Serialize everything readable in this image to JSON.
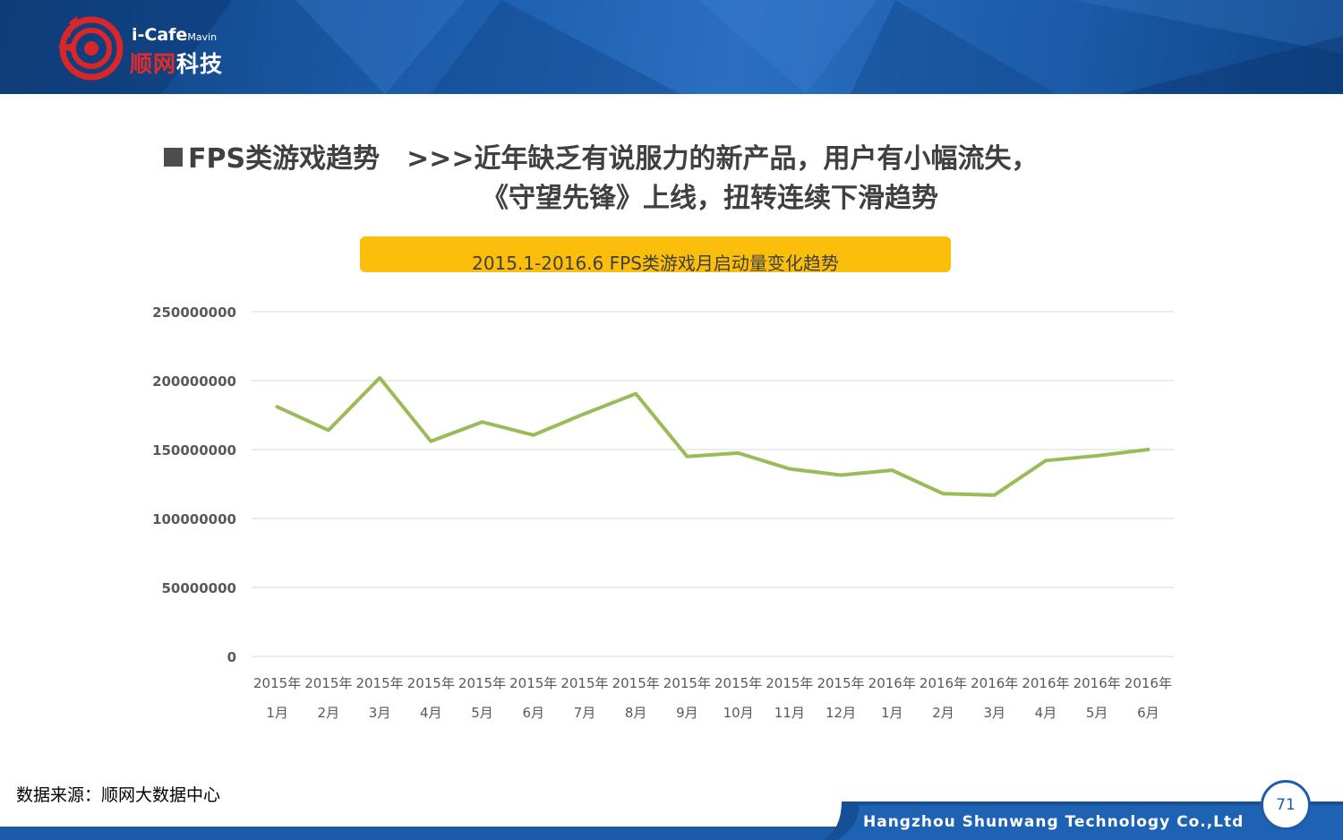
{
  "logo": {
    "brand_en": "i-Cafe",
    "brand_sub": "Mavin",
    "brand_cn_part1": "顺网",
    "brand_cn_part2": "科技"
  },
  "headline": {
    "line1": "FPS类游戏趋势　>>>近年缺乏有说服力的新产品，用户有小幅流失，",
    "line2": "《守望先锋》上线，扭转连续下滑趋势"
  },
  "chart_data": {
    "type": "line",
    "title": "2015.1-2016.6 FPS类游戏月启动量变化趋势",
    "categories": [
      [
        "2015年",
        "1月"
      ],
      [
        "2015年",
        "2月"
      ],
      [
        "2015年",
        "3月"
      ],
      [
        "2015年",
        "4月"
      ],
      [
        "2015年",
        "5月"
      ],
      [
        "2015年",
        "6月"
      ],
      [
        "2015年",
        "7月"
      ],
      [
        "2015年",
        "8月"
      ],
      [
        "2015年",
        "9月"
      ],
      [
        "2015年",
        "10月"
      ],
      [
        "2015年",
        "11月"
      ],
      [
        "2015年",
        "12月"
      ],
      [
        "2016年",
        "1月"
      ],
      [
        "2016年",
        "2月"
      ],
      [
        "2016年",
        "3月"
      ],
      [
        "2016年",
        "4月"
      ],
      [
        "2016年",
        "5月"
      ],
      [
        "2016年",
        "6月"
      ]
    ],
    "values": [
      181000000,
      164000000,
      202000000,
      156000000,
      170000000,
      160500000,
      176000000,
      190500000,
      145000000,
      147500000,
      136000000,
      131500000,
      135000000,
      118000000,
      117000000,
      142000000,
      145500000,
      150000000
    ],
    "ylim": [
      0,
      250000000
    ],
    "yticks": [
      0,
      50000000,
      100000000,
      150000000,
      200000000,
      250000000
    ],
    "ytick_labels": [
      "0",
      "50000000",
      "100000000",
      "150000000",
      "200000000",
      "250000000"
    ],
    "grid": true,
    "line_color": "#9bbb59",
    "title_bar_color": "#fbbf0b"
  },
  "footer": {
    "source": "数据来源：顺网大数据中心",
    "company": "Hangzhou Shunwang Technology Co.,Ltd",
    "page_number": "71"
  }
}
